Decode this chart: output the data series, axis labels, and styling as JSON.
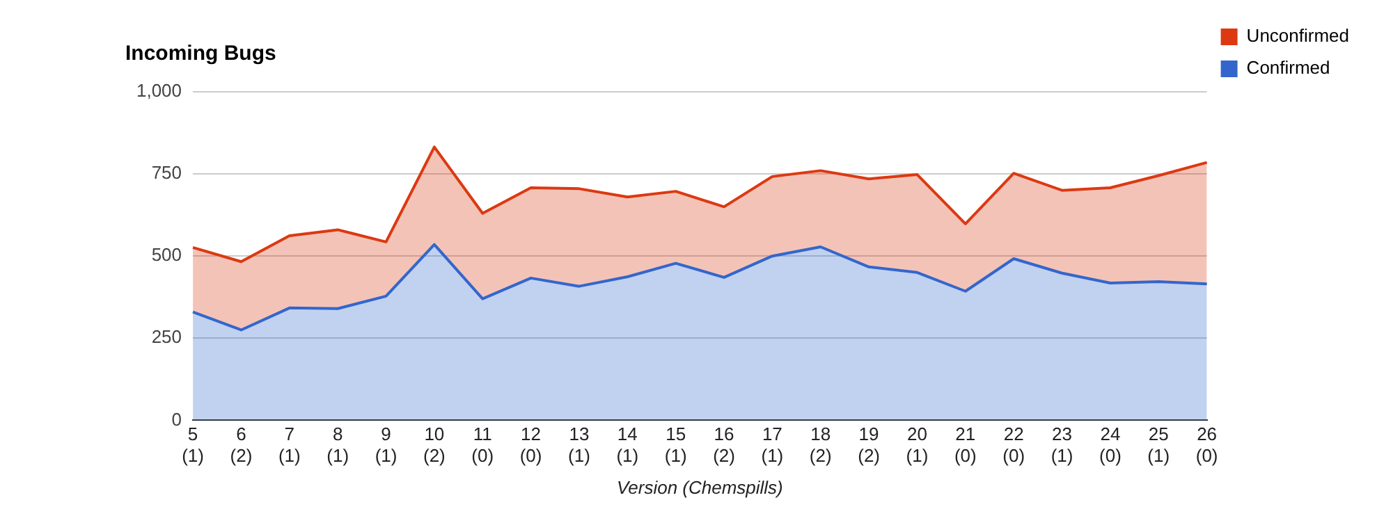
{
  "chart_data": {
    "type": "area",
    "title": "Incoming Bugs",
    "xlabel": "Version (Chemspills)",
    "categories": [
      "5 (1)",
      "6 (2)",
      "7 (1)",
      "8 (1)",
      "9 (1)",
      "10 (2)",
      "11 (0)",
      "12 (0)",
      "13 (1)",
      "14 (1)",
      "15 (1)",
      "16 (2)",
      "17 (1)",
      "18 (2)",
      "19 (2)",
      "20 (1)",
      "21 (0)",
      "22 (0)",
      "23 (1)",
      "24 (0)",
      "25 (1)",
      "26 (0)"
    ],
    "stacked": true,
    "series": [
      {
        "name": "Confirmed",
        "color": "#3366cc",
        "values": [
          330,
          275,
          342,
          340,
          378,
          535,
          370,
          433,
          408,
          437,
          478,
          435,
          500,
          528,
          467,
          450,
          393,
          492,
          448,
          418,
          422,
          415
        ]
      },
      {
        "name": "Unconfirmed",
        "color": "#dc3912",
        "values": [
          196,
          208,
          220,
          240,
          165,
          297,
          260,
          275,
          297,
          243,
          219,
          215,
          242,
          232,
          268,
          298,
          205,
          260,
          252,
          290,
          323,
          370
        ]
      }
    ],
    "ylim": [
      0,
      1000
    ],
    "yticks": [
      0,
      250,
      500,
      750,
      {
        "value": 1000,
        "label": "1,000"
      }
    ],
    "grid": "y",
    "legend": "right"
  }
}
